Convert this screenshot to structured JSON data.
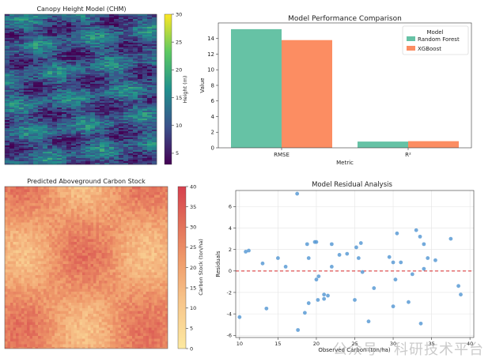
{
  "chart_data": [
    {
      "type": "heatmap",
      "title": "Canopy Height Model (CHM)",
      "colorbar_label": "Height (m)",
      "colorbar_ticks": [
        5,
        10,
        15,
        20,
        25,
        30
      ],
      "vmin": 3,
      "vmax": 30,
      "colormap": "viridis"
    },
    {
      "type": "bar",
      "title": "Model Performance Comparison",
      "xlabel": "Metric",
      "ylabel": "Value",
      "categories": [
        "RMSE",
        "R²"
      ],
      "ylim": [
        0,
        16
      ],
      "yticks": [
        0,
        2,
        4,
        6,
        8,
        10,
        12,
        14
      ],
      "legend_title": "Model",
      "legend_position": "top-right",
      "series": [
        {
          "name": "Random Forest",
          "values": [
            15.2,
            0.8
          ],
          "color": "#66c2a5"
        },
        {
          "name": "XGBoost",
          "values": [
            13.8,
            0.85
          ],
          "color": "#fc8d62"
        }
      ]
    },
    {
      "type": "heatmap",
      "title": "Predicted Aboveground Carbon Stock",
      "colorbar_label": "Carbon Stock (ton/ha)",
      "colorbar_ticks": [
        0,
        5,
        10,
        15,
        20,
        25,
        30,
        35,
        40
      ],
      "vmin": 0,
      "vmax": 40,
      "colormap": "YlOrRd-like"
    },
    {
      "type": "scatter",
      "title": "Model Residual Analysis",
      "xlabel": "Observed Carbon (ton/ha)",
      "ylabel": "Residuals",
      "xlim": [
        9.5,
        40.5
      ],
      "ylim": [
        -6.2,
        7.5
      ],
      "xticks": [
        10,
        15,
        20,
        25,
        30,
        35,
        40
      ],
      "yticks": [
        -6,
        -4,
        -2,
        0,
        2,
        4,
        6
      ],
      "grid": true,
      "reference_line_y": 0,
      "point_color": "#5b9bd5",
      "line_color": "#d62728",
      "points": [
        [
          10.0,
          -4.3
        ],
        [
          10.8,
          1.8
        ],
        [
          11.2,
          1.9
        ],
        [
          13.0,
          0.7
        ],
        [
          13.5,
          -3.5
        ],
        [
          15.0,
          1.2
        ],
        [
          16.0,
          0.4
        ],
        [
          17.5,
          7.2
        ],
        [
          17.6,
          -5.5
        ],
        [
          18.5,
          -3.9
        ],
        [
          18.8,
          2.5
        ],
        [
          19.0,
          -3.0
        ],
        [
          19.0,
          1.2
        ],
        [
          19.8,
          2.7
        ],
        [
          20.0,
          2.7
        ],
        [
          20.0,
          -0.8
        ],
        [
          20.3,
          -0.5
        ],
        [
          20.2,
          -2.7
        ],
        [
          21.0,
          -2.2
        ],
        [
          21.0,
          -2.6
        ],
        [
          21.5,
          -2.3
        ],
        [
          22.0,
          0.4
        ],
        [
          22.0,
          2.5
        ],
        [
          23.0,
          1.5
        ],
        [
          24.0,
          1.6
        ],
        [
          25.0,
          -2.7
        ],
        [
          25.2,
          2.2
        ],
        [
          25.5,
          1.2
        ],
        [
          25.8,
          2.6
        ],
        [
          26.0,
          -0.1
        ],
        [
          26.8,
          -4.7
        ],
        [
          27.5,
          -1.6
        ],
        [
          29.5,
          1.3
        ],
        [
          30.0,
          0.8
        ],
        [
          30.0,
          -3.3
        ],
        [
          30.3,
          -0.8
        ],
        [
          30.5,
          3.5
        ],
        [
          31.0,
          0.8
        ],
        [
          32.0,
          -2.9
        ],
        [
          32.5,
          -0.3
        ],
        [
          33.0,
          3.8
        ],
        [
          33.5,
          3.2
        ],
        [
          33.6,
          -4.9
        ],
        [
          34.0,
          2.5
        ],
        [
          34.0,
          0.2
        ],
        [
          34.5,
          1.2
        ],
        [
          35.5,
          1.0
        ],
        [
          37.5,
          3.0
        ],
        [
          38.5,
          -1.4
        ],
        [
          38.8,
          -2.2
        ]
      ]
    }
  ],
  "watermark": "公众号 · 科研技术平台"
}
